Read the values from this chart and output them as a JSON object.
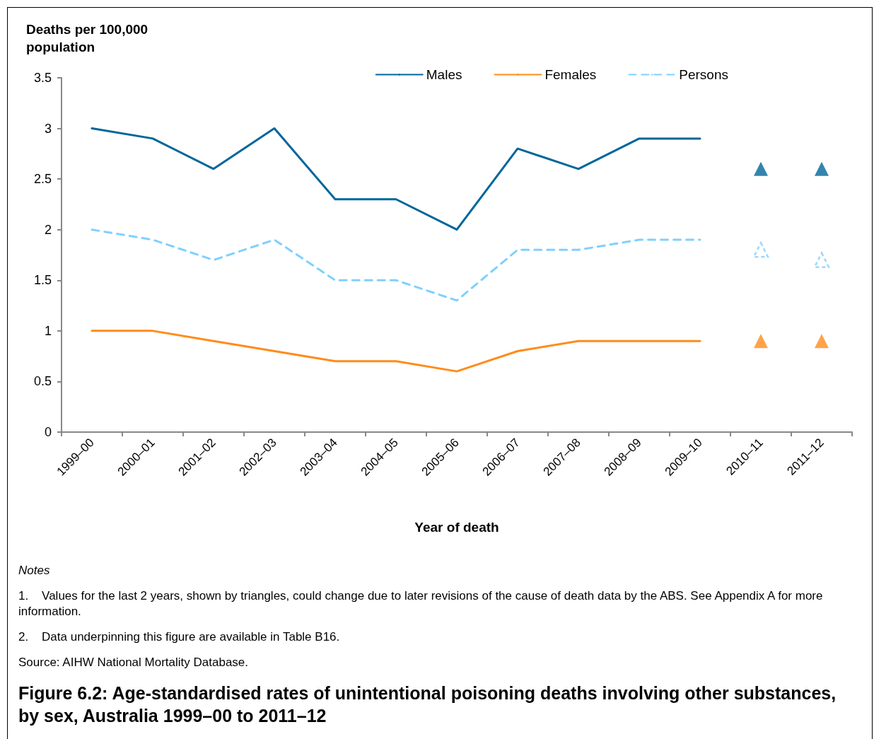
{
  "chart_data": {
    "type": "line",
    "title": "Figure 6.2: Age-standardised rates of unintentional poisoning deaths involving other substances, by sex, Australia 1999–00 to 2011–12",
    "xlabel": "Year of death",
    "ylabel": "Deaths per 100,000 population",
    "categories": [
      "1999–00",
      "2000–01",
      "2001–02",
      "2002–03",
      "2003–04",
      "2004–05",
      "2005–06",
      "2006–07",
      "2007–08",
      "2008–09",
      "2009–10",
      "2010–11",
      "2011–12"
    ],
    "series": [
      {
        "name": "Males",
        "color": "#00669a",
        "line_style": "solid",
        "marker": "none",
        "values": [
          3,
          2.9,
          2.6,
          3,
          2.3,
          2.3,
          2,
          2.8,
          2.6,
          2.9,
          2.9,
          null,
          null
        ]
      },
      {
        "name": "Females",
        "color": "#ff8c1a",
        "line_style": "solid",
        "marker": "none",
        "values": [
          1,
          1,
          0.9,
          0.8,
          0.7,
          0.7,
          0.6,
          0.8,
          0.9,
          0.9,
          0.9,
          null,
          null
        ]
      },
      {
        "name": "Persons",
        "color": "#80d0ff",
        "line_style": "dashed",
        "marker": "none",
        "values": [
          2,
          1.9,
          1.7,
          1.9,
          1.5,
          1.5,
          1.3,
          1.8,
          1.8,
          1.9,
          1.9,
          null,
          null
        ]
      },
      {
        "type": "scatter",
        "color": "#00669a",
        "marker": "triangle",
        "x": [
          "2010–11",
          "2011–12"
        ],
        "values": [
          2.6,
          2.6
        ]
      },
      {
        "type": "scatter",
        "color": "#ff8c1a",
        "marker": "triangle",
        "x": [
          "2010–11",
          "2011–12"
        ],
        "values": [
          0.9,
          0.9
        ]
      },
      {
        "type": "scatter",
        "color": "#80d0ff",
        "line_style": "dashed",
        "marker": "triangle",
        "x": [
          "2010–11",
          "2011–12"
        ],
        "values": [
          1.8,
          1.7
        ]
      }
    ],
    "ylim": [
      0,
      3.5
    ],
    "yticks": [
      0,
      0.5,
      1,
      1.5,
      2,
      2.5,
      3,
      3.5
    ],
    "grid": false,
    "legend": "top right",
    "annotations": [
      "Notes",
      "1.    Values for the last 2 years, shown by triangles, could change due to later revisions of the cause of death data by the ABS. See Appendix A for more information.",
      "2.    Data underpinning this figure are available in Table B16.",
      "Source: AIHW National Mortality Database."
    ]
  }
}
